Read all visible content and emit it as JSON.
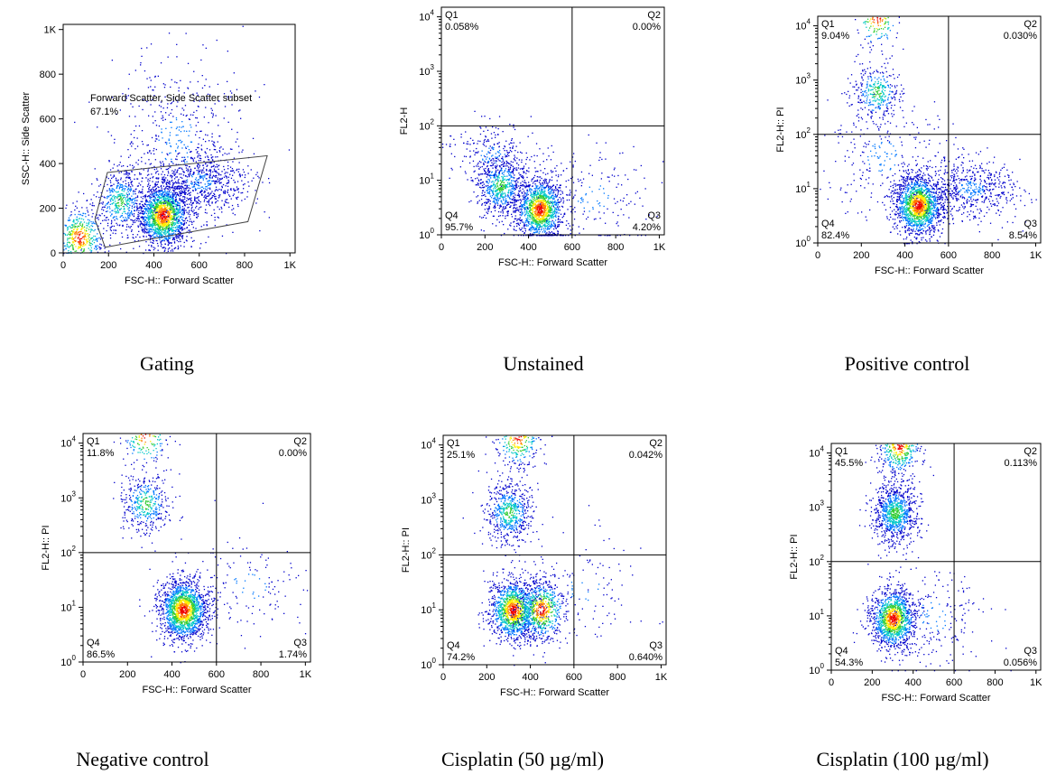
{
  "chart_data": [
    {
      "type": "scatter",
      "caption": "Gating",
      "xlabel": "FSC-H:: Forward Scatter",
      "ylabel": "SSC-H:: Side Scatter",
      "x_ticks": [
        "0",
        "200",
        "400",
        "600",
        "800",
        "1K"
      ],
      "y_ticks": [
        "0",
        "200",
        "400",
        "600",
        "800",
        "1K"
      ],
      "xlim": [
        0,
        1023
      ],
      "ylim": [
        0,
        1023
      ],
      "y_scale": "linear",
      "gate": {
        "label": "Forward Scatter, Side Scatter subset",
        "percent": "67.1%",
        "polygon": [
          [
            195,
            360
          ],
          [
            900,
            435
          ],
          [
            815,
            140
          ],
          [
            185,
            25
          ],
          [
            140,
            150
          ]
        ]
      },
      "populations": [
        {
          "x": 440,
          "y": 170,
          "count": 1700,
          "density": "high"
        },
        {
          "x": 70,
          "y": 70,
          "count": 500,
          "density": "high"
        },
        {
          "x": 250,
          "y": 230,
          "count": 450,
          "density": "medium"
        },
        {
          "x": 600,
          "y": 320,
          "count": 700,
          "density": "low"
        },
        {
          "x": 500,
          "y": 500,
          "count": 500,
          "density": "sparse"
        }
      ]
    },
    {
      "type": "scatter",
      "caption": "Unstained",
      "xlabel": "FSC-H:: Forward Scatter",
      "ylabel": "FL2-H",
      "x_ticks": [
        "0",
        "200",
        "400",
        "600",
        "800",
        "1K"
      ],
      "y_ticks": [
        "10^0",
        "10^1",
        "10^2",
        "10^3",
        "10^4"
      ],
      "xlim": [
        0,
        1023
      ],
      "ylim": [
        1,
        15000
      ],
      "y_scale": "log",
      "quadrant_x": 600,
      "quadrant_y": 100,
      "quadrants": [
        {
          "name": "Q1",
          "percent": "0.058%"
        },
        {
          "name": "Q2",
          "percent": "0.00%"
        },
        {
          "name": "Q3",
          "percent": "4.20%"
        },
        {
          "name": "Q4",
          "percent": "95.7%"
        }
      ],
      "populations": [
        {
          "x": 450,
          "y": 3,
          "count": 1300,
          "density": "high"
        },
        {
          "x": 270,
          "y": 8,
          "count": 700,
          "density": "medium"
        },
        {
          "x": 230,
          "y": 30,
          "count": 250,
          "density": "low"
        },
        {
          "x": 700,
          "y": 5,
          "count": 200,
          "density": "sparse"
        }
      ]
    },
    {
      "type": "scatter",
      "caption": "Positive control",
      "xlabel": "FSC-H:: Forward Scatter",
      "ylabel": "FL2-H:: PI",
      "x_ticks": [
        "0",
        "200",
        "400",
        "600",
        "800",
        "1K"
      ],
      "y_ticks": [
        "10^0",
        "10^1",
        "10^2",
        "10^3",
        "10^4"
      ],
      "xlim": [
        0,
        1023
      ],
      "ylim": [
        1,
        15000
      ],
      "y_scale": "log",
      "quadrant_x": 600,
      "quadrant_y": 100,
      "quadrants": [
        {
          "name": "Q1",
          "percent": "9.04%"
        },
        {
          "name": "Q2",
          "percent": "0.030%"
        },
        {
          "name": "Q3",
          "percent": "8.54%"
        },
        {
          "name": "Q4",
          "percent": "82.4%"
        }
      ],
      "populations": [
        {
          "x": 460,
          "y": 5,
          "count": 1600,
          "density": "high"
        },
        {
          "x": 270,
          "y": 600,
          "count": 350,
          "density": "medium"
        },
        {
          "x": 270,
          "y": 14000,
          "count": 200,
          "density": "high"
        },
        {
          "x": 700,
          "y": 10,
          "count": 600,
          "density": "low"
        },
        {
          "x": 300,
          "y": 40,
          "count": 250,
          "density": "sparse"
        }
      ]
    },
    {
      "type": "scatter",
      "caption": "Negative control",
      "xlabel": "FSC-H:: Forward Scatter",
      "ylabel": "FL2-H:: PI",
      "x_ticks": [
        "0",
        "200",
        "400",
        "600",
        "800",
        "1K"
      ],
      "y_ticks": [
        "10^0",
        "10^1",
        "10^2",
        "10^3",
        "10^4"
      ],
      "xlim": [
        0,
        1023
      ],
      "ylim": [
        1,
        15000
      ],
      "y_scale": "log",
      "quadrant_x": 600,
      "quadrant_y": 100,
      "quadrants": [
        {
          "name": "Q1",
          "percent": "11.8%"
        },
        {
          "name": "Q2",
          "percent": "0.00%"
        },
        {
          "name": "Q3",
          "percent": "1.74%"
        },
        {
          "name": "Q4",
          "percent": "86.5%"
        }
      ],
      "populations": [
        {
          "x": 450,
          "y": 9,
          "count": 1700,
          "density": "high"
        },
        {
          "x": 280,
          "y": 800,
          "count": 400,
          "density": "medium"
        },
        {
          "x": 280,
          "y": 14000,
          "count": 200,
          "density": "high"
        },
        {
          "x": 750,
          "y": 25,
          "count": 150,
          "density": "sparse"
        }
      ]
    },
    {
      "type": "scatter",
      "caption": "Cisplatin (50 µg/ml)",
      "xlabel": "FSC-H:: Forward Scatter",
      "ylabel": "FL2-H:: PI",
      "x_ticks": [
        "0",
        "200",
        "400",
        "600",
        "800",
        "1K"
      ],
      "y_ticks": [
        "10^0",
        "10^1",
        "10^2",
        "10^3",
        "10^4"
      ],
      "xlim": [
        0,
        1023
      ],
      "ylim": [
        1,
        15000
      ],
      "y_scale": "log",
      "quadrant_x": 600,
      "quadrant_y": 100,
      "quadrants": [
        {
          "name": "Q1",
          "percent": "25.1%"
        },
        {
          "name": "Q2",
          "percent": "0.042%"
        },
        {
          "name": "Q3",
          "percent": "0.640%"
        },
        {
          "name": "Q4",
          "percent": "74.2%"
        }
      ],
      "populations": [
        {
          "x": 320,
          "y": 10,
          "count": 1300,
          "density": "high"
        },
        {
          "x": 450,
          "y": 10,
          "count": 700,
          "density": "high"
        },
        {
          "x": 300,
          "y": 600,
          "count": 600,
          "density": "medium"
        },
        {
          "x": 340,
          "y": 14000,
          "count": 350,
          "density": "high"
        },
        {
          "x": 650,
          "y": 25,
          "count": 120,
          "density": "sparse"
        }
      ]
    },
    {
      "type": "scatter",
      "caption": "Cisplatin (100 µg/ml)",
      "xlabel": "FSC-H:: Forward Scatter",
      "ylabel": "FL2-H:: PI",
      "x_ticks": [
        "0",
        "200",
        "400",
        "600",
        "800",
        "1K"
      ],
      "y_ticks": [
        "10^0",
        "10^1",
        "10^2",
        "10^3",
        "10^4"
      ],
      "xlim": [
        0,
        1023
      ],
      "ylim": [
        1,
        15000
      ],
      "y_scale": "log",
      "quadrant_x": 600,
      "quadrant_y": 100,
      "quadrants": [
        {
          "name": "Q1",
          "percent": "45.5%"
        },
        {
          "name": "Q2",
          "percent": "0.113%"
        },
        {
          "name": "Q3",
          "percent": "0.056%"
        },
        {
          "name": "Q4",
          "percent": "54.3%"
        }
      ],
      "populations": [
        {
          "x": 300,
          "y": 9,
          "count": 1300,
          "density": "high"
        },
        {
          "x": 310,
          "y": 800,
          "count": 900,
          "density": "medium"
        },
        {
          "x": 330,
          "y": 14000,
          "count": 500,
          "density": "high"
        },
        {
          "x": 500,
          "y": 10,
          "count": 200,
          "density": "sparse"
        }
      ]
    }
  ],
  "colors": {
    "axis": "#000000",
    "gate_line": "#444444",
    "density_scale": [
      "#0000cc",
      "#0077ff",
      "#00c8c8",
      "#33cc33",
      "#ffee00",
      "#ff7700",
      "#ee0000"
    ]
  }
}
